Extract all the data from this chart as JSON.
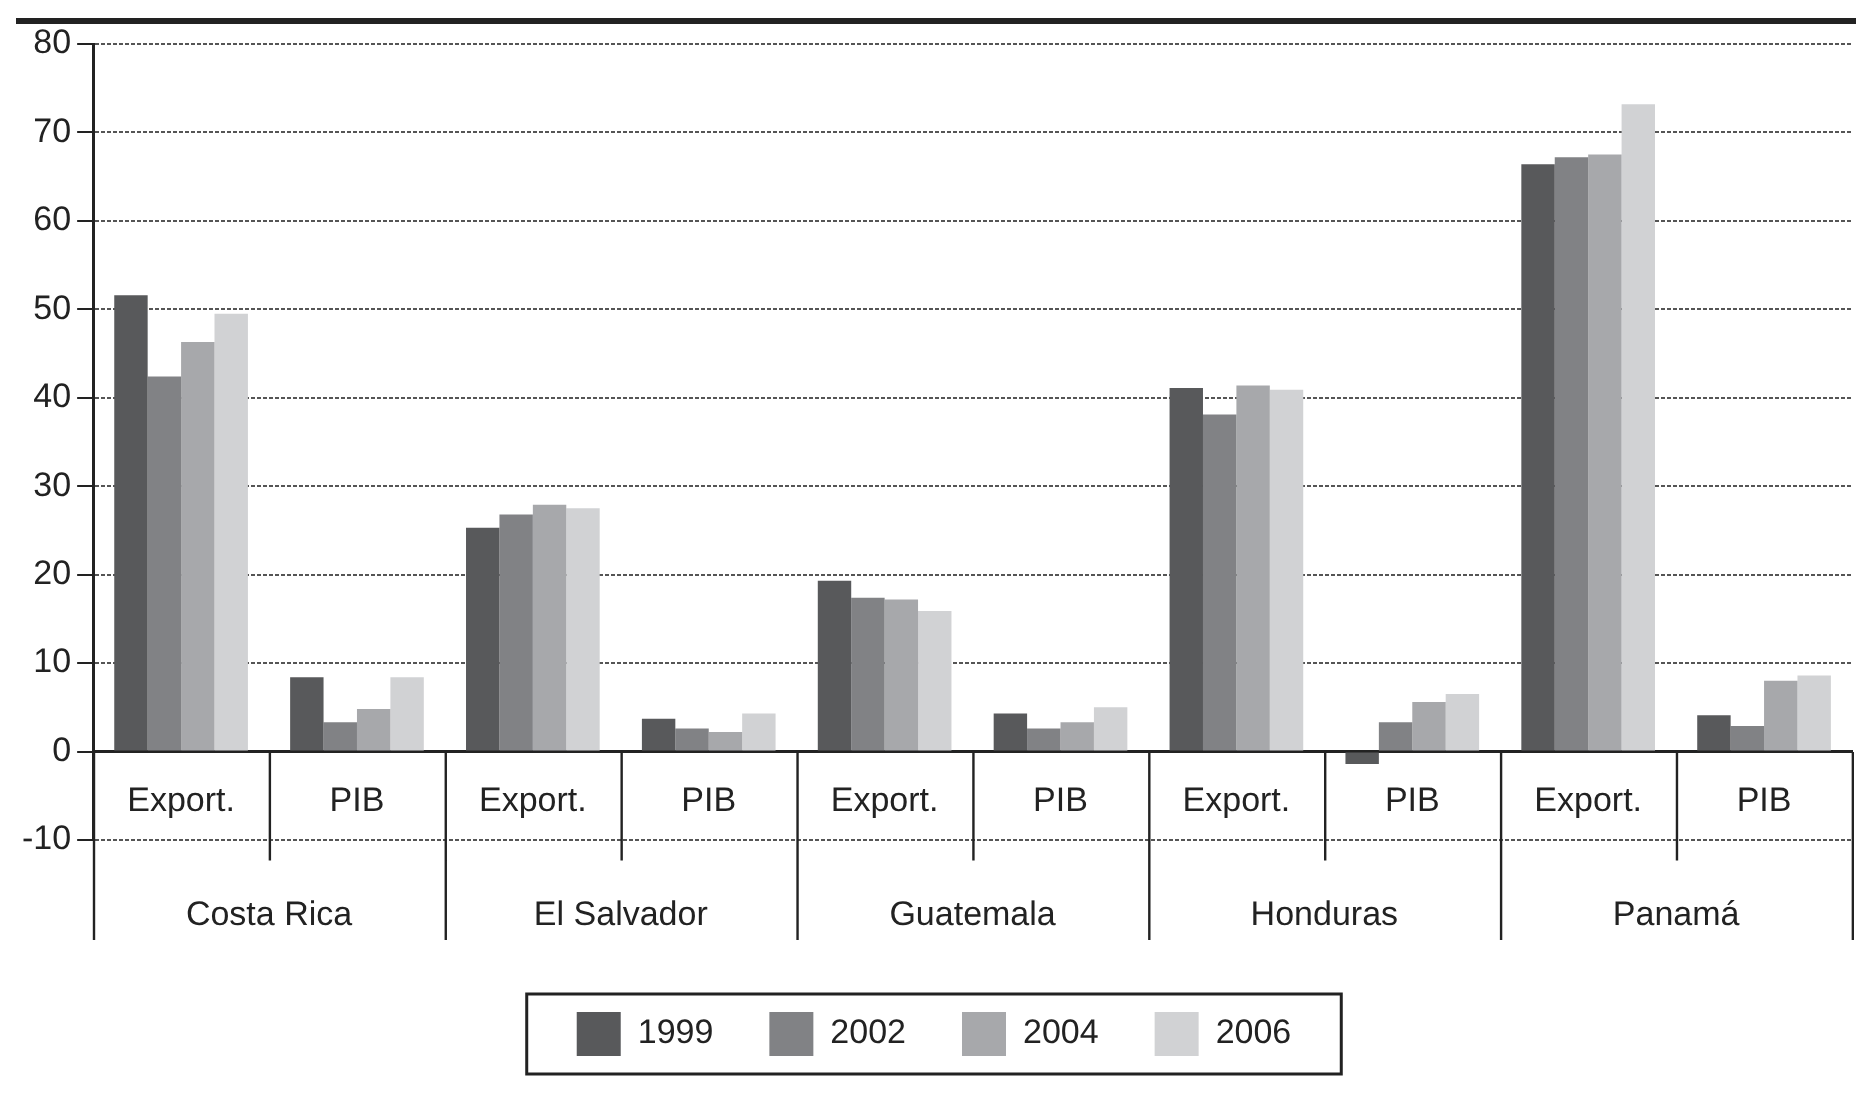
{
  "chart_data": {
    "type": "bar",
    "categories": [
      "Export.",
      "PIB",
      "Export.",
      "PIB",
      "Export.",
      "PIB",
      "Export.",
      "PIB",
      "Export.",
      "PIB"
    ],
    "annotations": [
      "Costa Rica",
      "El Salvador",
      "Guatemala",
      "Honduras",
      "Panamá"
    ],
    "series": [
      {
        "name": "1999",
        "color": "#58595b",
        "values": [
          51.6,
          8.4,
          25.3,
          3.7,
          19.3,
          4.3,
          41.1,
          -1.4,
          66.4,
          4.1
        ]
      },
      {
        "name": "2002",
        "color": "#818285",
        "values": [
          42.4,
          3.3,
          26.8,
          2.6,
          17.4,
          2.6,
          38.1,
          3.3,
          67.2,
          2.9
        ]
      },
      {
        "name": "2004",
        "color": "#a7a8ab",
        "values": [
          46.3,
          4.8,
          27.9,
          2.2,
          17.2,
          3.3,
          41.4,
          5.6,
          67.5,
          8.0
        ]
      },
      {
        "name": "2006",
        "color": "#d1d2d4",
        "values": [
          49.5,
          8.4,
          27.5,
          4.3,
          15.9,
          5.0,
          40.9,
          6.5,
          73.2,
          8.6
        ]
      }
    ],
    "ylim": [
      -10,
      80
    ],
    "yticks": [
      -10,
      0,
      10,
      20,
      30,
      40,
      50,
      60,
      70,
      80
    ],
    "grid": "y",
    "legend": "bottom"
  }
}
